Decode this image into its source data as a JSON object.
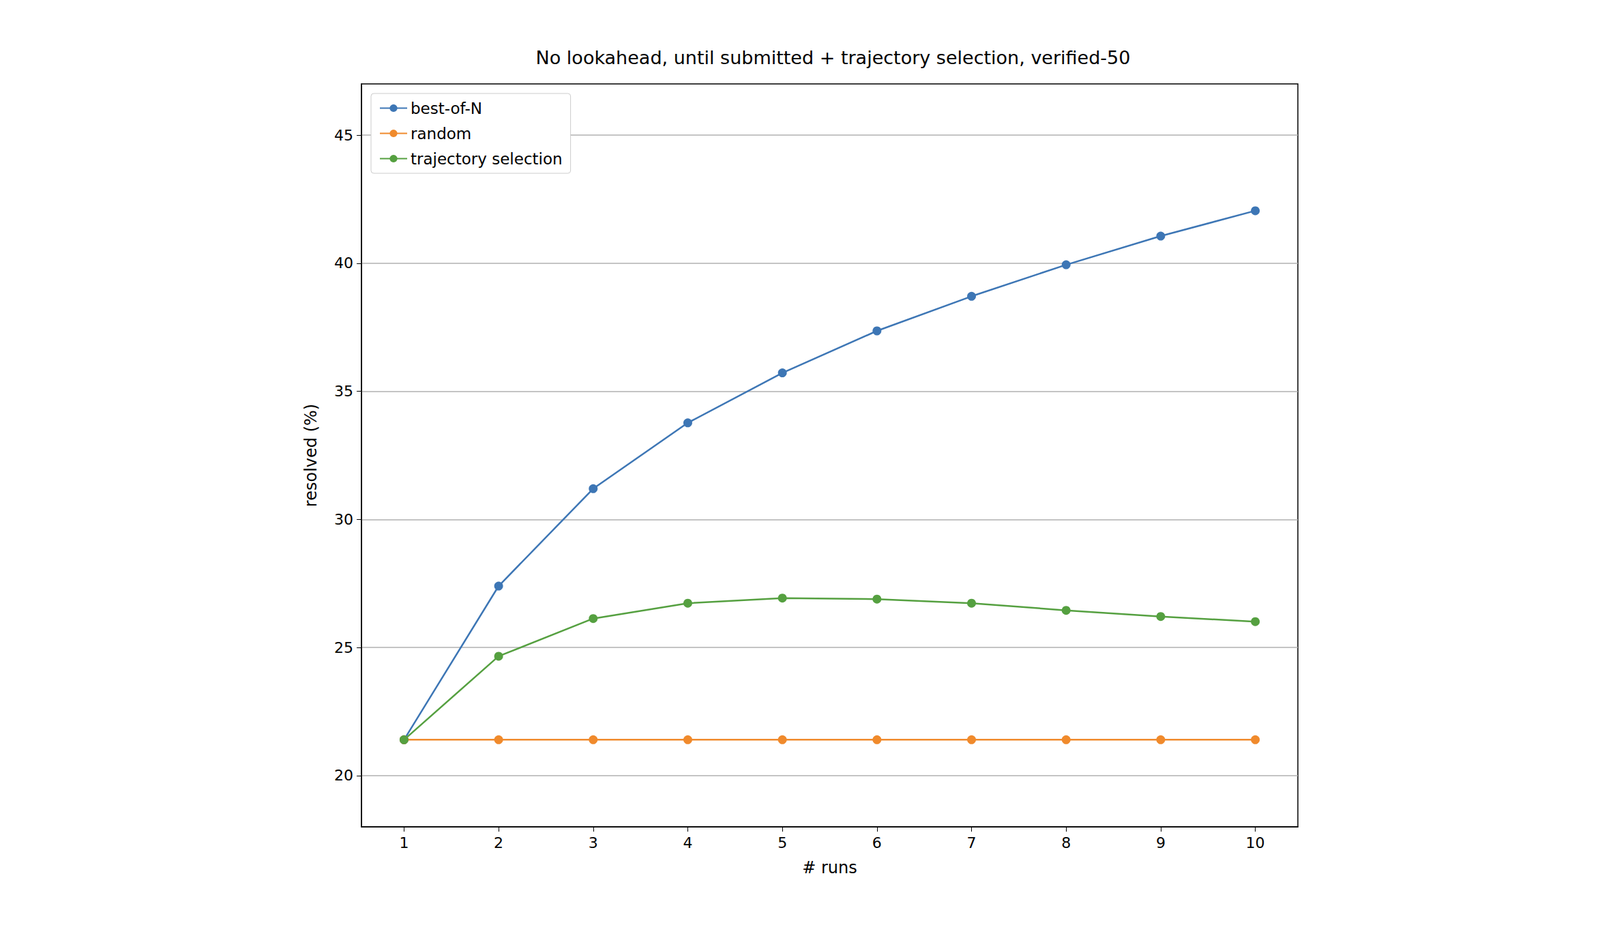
{
  "chart_data": {
    "type": "line",
    "title": "No lookahead, until submitted + trajectory selection, verified-50",
    "x_label": "# runs",
    "y_label": "resolved (%)",
    "x": [
      1,
      2,
      3,
      4,
      5,
      6,
      7,
      8,
      9,
      10
    ],
    "series": [
      {
        "name": "best-of-N",
        "color": "#3d76b5",
        "marker": "circle",
        "values": [
          21.4,
          27.4,
          31.2,
          33.77,
          35.72,
          37.36,
          38.71,
          39.94,
          41.06,
          42.05
        ]
      },
      {
        "name": "random",
        "color": "#f08a2c",
        "marker": "circle",
        "values": [
          21.4,
          21.4,
          21.4,
          21.4,
          21.4,
          21.4,
          21.4,
          21.4,
          21.4,
          21.4
        ]
      },
      {
        "name": "trajectory selection",
        "color": "#55a040",
        "marker": "circle",
        "values": [
          21.4,
          24.66,
          26.13,
          26.73,
          26.93,
          26.89,
          26.73,
          26.45,
          26.21,
          26.01
        ]
      }
    ],
    "xlim": [
      0.55,
      10.45
    ],
    "xticks": [
      1,
      2,
      3,
      4,
      5,
      6,
      7,
      8,
      9,
      10
    ],
    "ylim": [
      18,
      47
    ],
    "yticks": [
      20,
      25,
      30,
      35,
      40,
      45
    ],
    "grid": "y",
    "legend": "upper left"
  }
}
